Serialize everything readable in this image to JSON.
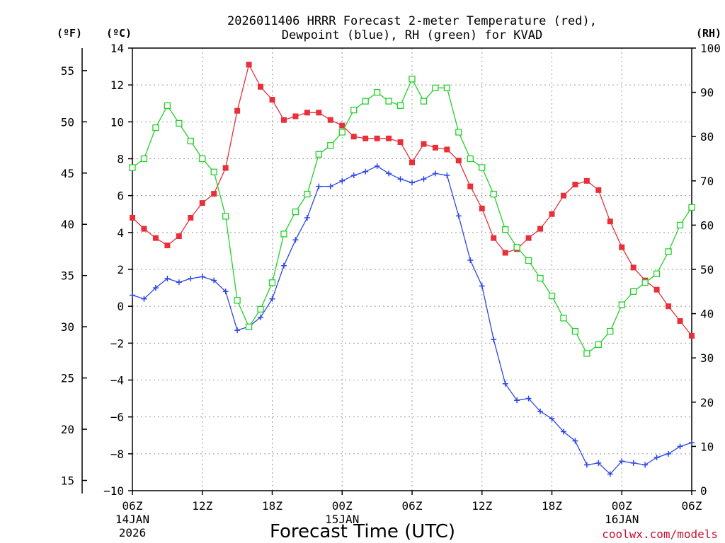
{
  "chart_data": {
    "type": "line",
    "title_lines": [
      "2026011406 HRRR Forecast 2-meter Temperature (red),",
      "Dewpoint (blue), RH (green) for KVAD"
    ],
    "xlabel": "Forecast Time (UTC)",
    "credit": "coolwx.com/models",
    "units": {
      "fahrenheit": "(ºF)",
      "celsius": "(ºC)",
      "rh": "(RH)"
    },
    "x_range_hours": [
      0,
      48
    ],
    "x_ticks": [
      {
        "hour": 0,
        "label": "06Z",
        "date": "14JAN",
        "year": "2026"
      },
      {
        "hour": 6,
        "label": "12Z"
      },
      {
        "hour": 12,
        "label": "18Z"
      },
      {
        "hour": 18,
        "label": "00Z",
        "date": "15JAN"
      },
      {
        "hour": 24,
        "label": "06Z"
      },
      {
        "hour": 30,
        "label": "12Z"
      },
      {
        "hour": 36,
        "label": "18Z"
      },
      {
        "hour": 42,
        "label": "00Z",
        "date": "16JAN"
      },
      {
        "hour": 48,
        "label": "06Z"
      }
    ],
    "celsius_axis": {
      "min": -10,
      "max": 14,
      "ticks": [
        -10,
        -8,
        -6,
        -4,
        -2,
        0,
        2,
        4,
        6,
        8,
        10,
        12,
        14
      ]
    },
    "fahrenheit_axis": {
      "ticks": [
        15,
        20,
        25,
        30,
        35,
        40,
        45,
        50,
        55
      ]
    },
    "rh_axis": {
      "min": 0,
      "max": 100,
      "ticks": [
        0,
        10,
        20,
        30,
        40,
        50,
        60,
        70,
        80,
        90,
        100
      ]
    },
    "grid": true,
    "series": [
      {
        "name": "Temperature",
        "unit": "C",
        "color": "#e8303a",
        "marker": "filled-square",
        "values": [
          4.8,
          4.2,
          3.7,
          3.3,
          3.8,
          4.8,
          5.6,
          6.1,
          7.5,
          10.6,
          13.1,
          11.9,
          11.2,
          10.1,
          10.3,
          10.5,
          10.5,
          10.1,
          9.8,
          9.2,
          9.1,
          9.1,
          9.1,
          8.9,
          7.8,
          8.8,
          8.6,
          8.5,
          7.9,
          6.5,
          5.3,
          3.7,
          2.9,
          3.1,
          3.7,
          4.2,
          5.0,
          6.0,
          6.6,
          6.8,
          6.3,
          4.6,
          3.2,
          2.1,
          1.4,
          0.9,
          0.0,
          -0.8,
          -1.6
        ]
      },
      {
        "name": "Dewpoint",
        "unit": "C",
        "color": "#2d46e6",
        "marker": "plus",
        "values": [
          0.6,
          0.4,
          1.0,
          1.5,
          1.3,
          1.5,
          1.6,
          1.4,
          0.8,
          -1.3,
          -1.1,
          -0.6,
          0.4,
          2.2,
          3.6,
          4.8,
          6.5,
          6.5,
          6.8,
          7.1,
          7.3,
          7.6,
          7.2,
          6.9,
          6.7,
          6.9,
          7.2,
          7.1,
          4.9,
          2.5,
          1.1,
          -1.8,
          -4.2,
          -5.1,
          -5.0,
          -5.7,
          -6.1,
          -6.8,
          -7.3,
          -8.6,
          -8.5,
          -9.1,
          -8.4,
          -8.5,
          -8.6,
          -8.2,
          -8.0,
          -7.6,
          -7.4
        ]
      },
      {
        "name": "RH",
        "unit": "%",
        "color": "#22d02a",
        "marker": "open-square",
        "values": [
          73,
          75,
          82,
          87,
          83,
          79,
          75,
          72,
          62,
          43,
          37,
          41,
          47,
          58,
          63,
          67,
          76,
          78,
          81,
          86,
          88,
          90,
          88,
          87,
          93,
          88,
          91,
          91,
          81,
          75,
          73,
          67,
          59,
          55,
          52,
          48,
          44,
          39,
          36,
          31,
          33,
          36,
          42,
          45,
          47,
          49,
          54,
          60,
          64
        ]
      }
    ]
  }
}
